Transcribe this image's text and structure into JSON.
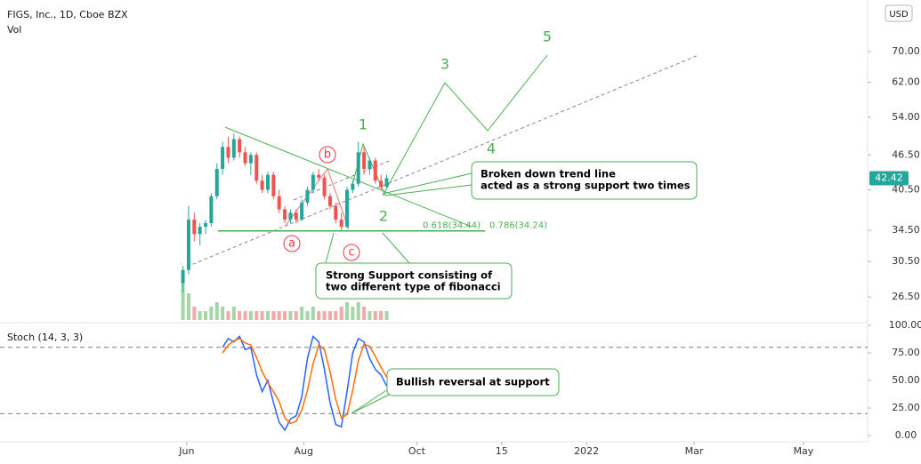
{
  "chart_data": {
    "type": "candlestick",
    "title": "FIGS, Inc., 1D, Cboe BZX",
    "currency": "USD",
    "log_scale": true,
    "up_color": "#26a69a",
    "down_color": "#ef5350",
    "x": [
      97,
      100,
      103,
      106,
      109,
      112,
      115,
      118,
      121,
      124,
      127,
      130,
      133,
      136,
      139,
      142,
      145,
      148,
      151,
      154,
      157,
      160,
      163,
      166,
      169,
      172,
      175,
      178,
      181,
      184,
      187,
      190,
      193,
      196,
      199,
      202,
      205
    ],
    "ohlc": {
      "open": [
        28,
        29.5,
        36,
        34,
        35,
        35.5,
        39.5,
        44,
        48,
        46,
        49.5,
        47,
        45,
        46.5,
        42,
        40.5,
        43,
        39.5,
        37.5,
        36,
        37,
        36,
        38.5,
        40.5,
        43,
        42.5,
        39.5,
        38,
        36,
        35,
        40.5,
        41.5,
        47,
        44,
        45.5,
        42,
        41
      ],
      "high": [
        30,
        38,
        37,
        35.5,
        36,
        40,
        45,
        49,
        50,
        50.5,
        50,
        48,
        47,
        47,
        43,
        43.5,
        43.5,
        40.5,
        38,
        37.5,
        37.5,
        39,
        41,
        43.5,
        44,
        43,
        40,
        38.5,
        37,
        41,
        42,
        49,
        48,
        46,
        46,
        43,
        43
      ],
      "low": [
        27,
        29,
        33,
        32.5,
        34,
        35,
        39,
        43,
        45,
        45.5,
        46,
        44.5,
        43,
        41.5,
        40,
        40,
        39,
        37,
        35.5,
        35.5,
        35.5,
        35.8,
        38,
        40,
        42,
        39,
        37.5,
        35.5,
        34.5,
        34.8,
        40,
        41,
        43,
        43,
        41.5,
        40.5,
        40.8
      ],
      "close": [
        29.5,
        36,
        34,
        35,
        35.5,
        39.5,
        44,
        48,
        46,
        49.5,
        47,
        45,
        46.5,
        42,
        40.5,
        43,
        39.5,
        37.5,
        36,
        37,
        36,
        38.5,
        40.5,
        43,
        42.5,
        39.5,
        38,
        36,
        35,
        40.5,
        41.5,
        47,
        44,
        45.5,
        42,
        41,
        42.42
      ]
    },
    "volume": {
      "name": "Vol",
      "color": "#a5d6a7",
      "down_color": "#f4a9a7",
      "values": [
        9,
        6,
        3,
        2,
        2,
        3,
        4,
        3,
        2,
        3,
        2,
        2,
        2,
        2,
        2,
        2,
        2,
        2,
        2,
        2,
        2,
        3,
        2,
        3,
        2,
        2,
        2,
        2,
        3,
        4,
        3,
        4,
        3,
        2,
        2,
        2,
        2
      ]
    },
    "ylim": [
      24.2,
      82.9
    ],
    "yticks": [
      {
        "value": 70,
        "label": "70.00"
      },
      {
        "value": 62,
        "label": "62.00"
      },
      {
        "value": 54,
        "label": "54.00"
      },
      {
        "value": 46.5,
        "label": "46.50"
      },
      {
        "value": 40.5,
        "label": "40.50"
      },
      {
        "value": 34.5,
        "label": "34.50"
      },
      {
        "value": 30.5,
        "label": "30.50"
      },
      {
        "value": 26.5,
        "label": "26.50"
      }
    ],
    "xlim": [
      0,
      460
    ],
    "xticks": [
      {
        "value": 99,
        "label": "Jun"
      },
      {
        "value": 161,
        "label": "Aug"
      },
      {
        "value": 221,
        "label": "Oct"
      },
      {
        "value": 266,
        "label": "15"
      },
      {
        "value": 311,
        "label": "2022"
      },
      {
        "value": 368,
        "label": "Mar"
      },
      {
        "value": 426,
        "label": "May"
      }
    ],
    "fib_levels": [
      {
        "label": "0.618(34.44)",
        "value": 34.44
      },
      {
        "label": "0.786(34.24)",
        "value": 34.24
      }
    ],
    "wave_labels": [
      "1",
      "2",
      "3",
      "4",
      "5"
    ],
    "corrective_labels": [
      "a",
      "b",
      "c"
    ],
    "callouts": [
      [
        "Broken down trend line",
        "acted as a strong support two times"
      ],
      [
        "Strong Support consisting of",
        "two different type of fibonacci"
      ],
      [
        "Bullish reversal at support"
      ]
    ],
    "indicator": {
      "name": "Stoch (14, 3, 3)",
      "ylim": [
        0,
        100
      ],
      "yticks": [
        {
          "value": 100,
          "label": "100.00"
        },
        {
          "value": 75,
          "label": "75.00"
        },
        {
          "value": 50,
          "label": "50.00"
        },
        {
          "value": 25,
          "label": "25.00"
        },
        {
          "value": 0,
          "label": "0.00"
        }
      ],
      "bands": [
        80,
        20
      ],
      "series": [
        {
          "color": "#2962ff",
          "values": [
            null,
            null,
            null,
            null,
            null,
            null,
            null,
            80,
            88,
            85,
            90,
            78,
            80,
            55,
            40,
            50,
            30,
            12,
            5,
            15,
            18,
            35,
            70,
            90,
            85,
            60,
            30,
            10,
            8,
            40,
            75,
            88,
            85,
            70,
            60,
            55,
            45
          ]
        },
        {
          "color": "#ff6d00",
          "values": [
            null,
            null,
            null,
            null,
            null,
            null,
            null,
            75,
            82,
            86,
            88,
            84,
            82,
            71,
            58,
            48,
            40,
            31,
            16,
            11,
            13,
            23,
            41,
            65,
            82,
            78,
            58,
            33,
            16,
            19,
            41,
            68,
            83,
            81,
            72,
            62,
            53
          ]
        }
      ]
    }
  }
}
